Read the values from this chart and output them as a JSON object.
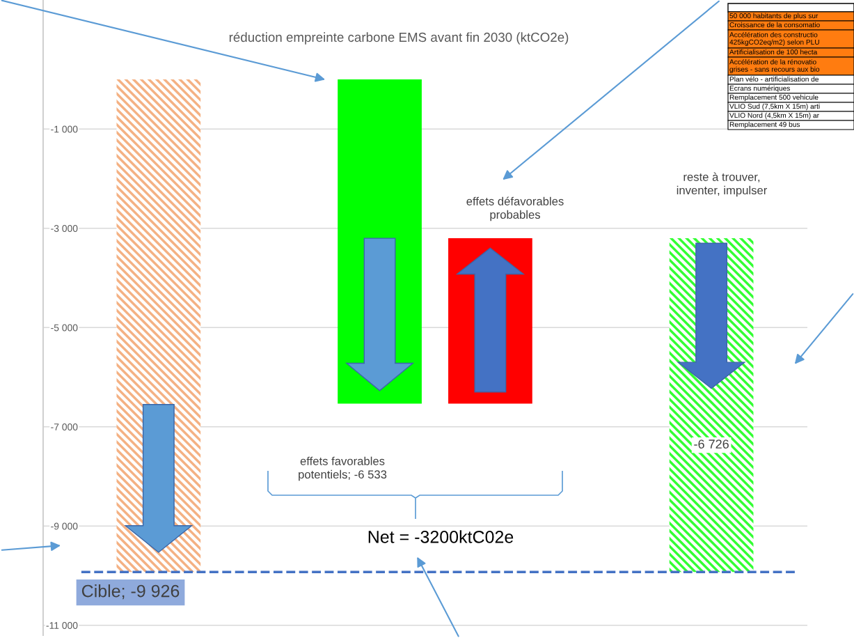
{
  "chart_data": {
    "type": "bar",
    "title": "réduction empreinte carbone EMS avant fin 2030 (ktCO2e)",
    "categories": [
      null,
      null,
      null,
      null,
      null,
      null
    ],
    "values": [
      -9926,
      null,
      -6533,
      3333,
      null,
      -6726
    ],
    "base": [
      0,
      null,
      0,
      -6533,
      null,
      -3200
    ],
    "colors": [
      "#f4b183",
      null,
      "#00ff00",
      "#ff0000",
      null,
      "#33ff33"
    ],
    "value_labels": [
      null,
      null,
      null,
      null,
      null,
      "-6 726"
    ],
    "ylim": [
      -11200,
      1600
    ],
    "yticks": [
      {
        "value": -1000,
        "label": "-1 000"
      },
      {
        "value": -3000,
        "label": "-3 000"
      },
      {
        "value": -5000,
        "label": "-5 000"
      },
      {
        "value": -7000,
        "label": "-7 000"
      },
      {
        "value": -9000,
        "label": "-9 000"
      },
      {
        "value": -11000,
        "label": "-11 000"
      }
    ],
    "grid": "y",
    "ref_lines": [
      {
        "axis": "y",
        "value": -9926,
        "label": "Cible; -9 926",
        "color": "#4472c4",
        "line_style": "dashed"
      }
    ],
    "annotations": [
      "effets défavorables\nprobables",
      "reste à trouver,\ninventer, impulser",
      "effets favorables\npotentiels; -6 533",
      "Net = -3200ktC02e",
      "50 000 habitants de plus sur",
      "Croissance de la consomatio",
      "Accélération des constructio\n425kgCO2eq/m2) selon PLU",
      "Artificialisation de 100 hecta",
      "Accélération de la rénovatio\ngrises - sans recours aux bio",
      "Plan vélo - artificialisation de",
      "Ecrans numériques",
      "Remplacement 500 vehicule",
      "VLIO Sud (7,5km X 15m) arti",
      "VLIO Nord (4,5km X 15m) ar",
      "Remplacement 49 bus"
    ]
  }
}
